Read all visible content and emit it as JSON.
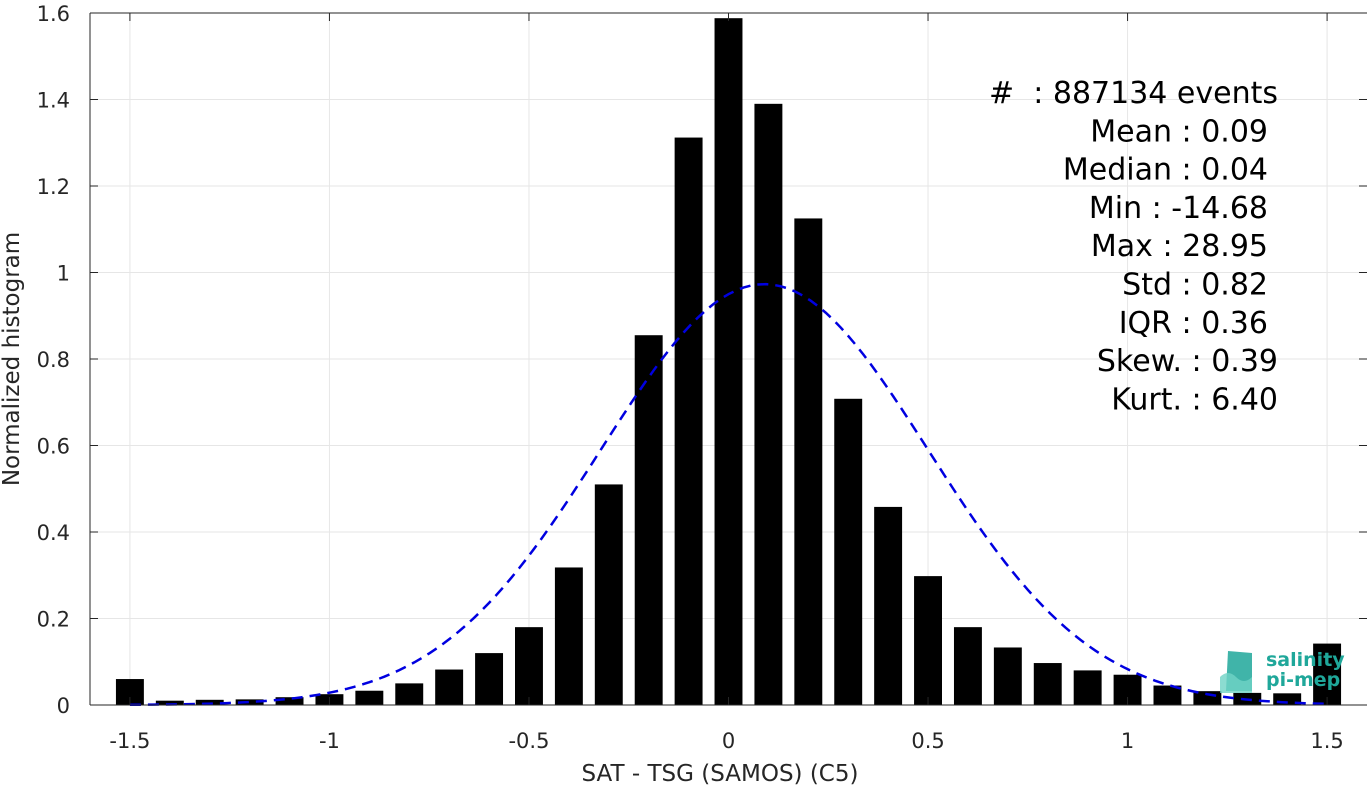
{
  "chart_data": {
    "type": "bar",
    "xlabel": "SAT - TSG (SAMOS) (C5)",
    "ylabel": "Normalized histogram",
    "xlim": [
      -1.6,
      1.6
    ],
    "ylim": [
      0,
      1.6
    ],
    "x_ticks": [
      "-1.5",
      "-1",
      "-0.5",
      "0",
      "0.5",
      "1",
      "1.5"
    ],
    "x_tick_values": [
      -1.5,
      -1,
      -0.5,
      0,
      0.5,
      1,
      1.5
    ],
    "y_ticks": [
      "0",
      "0.2",
      "0.4",
      "0.6",
      "0.8",
      "1",
      "1.2",
      "1.4",
      "1.6"
    ],
    "y_tick_values": [
      0,
      0.2,
      0.4,
      0.6,
      0.8,
      1,
      1.2,
      1.4,
      1.6
    ],
    "grid": true,
    "bar_color": "#000000",
    "curve_color": "#0000e0",
    "bin_width": 0.1,
    "bins": {
      "x": [
        -1.5,
        -1.4,
        -1.3,
        -1.2,
        -1.1,
        -1.0,
        -0.9,
        -0.8,
        -0.7,
        -0.6,
        -0.5,
        -0.4,
        -0.3,
        -0.2,
        -0.1,
        0.0,
        0.1,
        0.2,
        0.3,
        0.4,
        0.5,
        0.6,
        0.7,
        0.8,
        0.9,
        1.0,
        1.1,
        1.2,
        1.3,
        1.4,
        1.5
      ],
      "values": [
        0.06,
        0.01,
        0.012,
        0.013,
        0.018,
        0.025,
        0.033,
        0.05,
        0.082,
        0.12,
        0.18,
        0.318,
        0.51,
        0.855,
        1.312,
        1.588,
        1.39,
        1.125,
        0.708,
        0.458,
        0.298,
        0.18,
        0.133,
        0.097,
        0.08,
        0.07,
        0.045,
        0.032,
        0.028,
        0.027,
        0.142
      ]
    },
    "fit": {
      "type": "normal",
      "mean": 0.09,
      "std": 0.41,
      "line_style": "dashed",
      "x_range": [
        -1.5,
        1.5
      ]
    },
    "annotations": [
      {
        "label": "#",
        "value": ": 887134 events"
      },
      {
        "label": "Mean",
        "value": ": 0.09"
      },
      {
        "label": "Median",
        "value": ": 0.04"
      },
      {
        "label": "Min",
        "value": ": -14.68"
      },
      {
        "label": "Max",
        "value": ": 28.95"
      },
      {
        "label": "Std",
        "value": ": 0.82"
      },
      {
        "label": "IQR",
        "value": ": 0.36"
      },
      {
        "label": "Skew.",
        "value": ": 0.39"
      },
      {
        "label": "Kurt.",
        "value": ": 6.40"
      }
    ]
  },
  "logo": {
    "line1": "salinity",
    "line2": "pi-mep",
    "color": "#1fa79a"
  }
}
